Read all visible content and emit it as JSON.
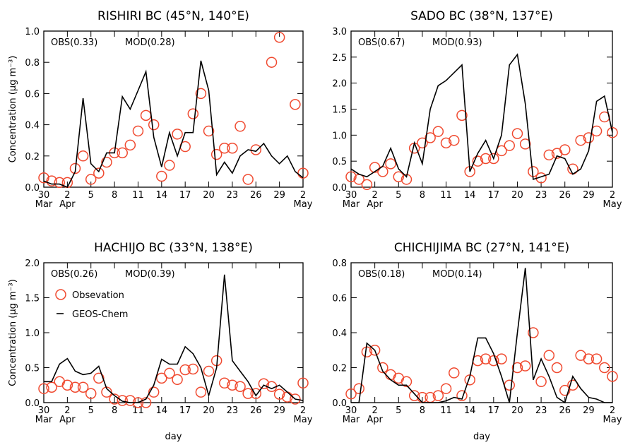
{
  "chart_data": [
    {
      "type": "line",
      "title": "RISHIRI BC (45°N, 140°E)",
      "ylabel": "Concentration (μg m⁻³)",
      "annotations": [
        {
          "text": "OBS(0.33)",
          "color": "#f04a30"
        },
        {
          "text": "MOD(0.28)",
          "color": "#000000"
        }
      ],
      "categories": [
        "30 Mar",
        null,
        null,
        "2 Apr",
        null,
        null,
        "5",
        null,
        null,
        "8",
        null,
        null,
        "11",
        null,
        null,
        "14",
        null,
        null,
        "17",
        null,
        null,
        "20",
        null,
        null,
        "23",
        null,
        null,
        "26",
        null,
        null,
        "29",
        null,
        null,
        "2 May"
      ],
      "ylim": [
        0,
        1
      ],
      "yticks": [
        {
          "value": 0,
          "label": "0.0"
        },
        0.2,
        0.4,
        0.6,
        0.8,
        {
          "value": 1,
          "label": "1.0"
        }
      ],
      "series": [
        {
          "style": "markers",
          "color": "#f04a30",
          "values": [
            0.06,
            0.04,
            0.03,
            0.03,
            0.12,
            0.2,
            0.05,
            0.09,
            0.16,
            0.22,
            0.22,
            0.27,
            0.36,
            0.46,
            0.4,
            0.07,
            0.14,
            0.34,
            0.26,
            0.47,
            0.6,
            0.36,
            0.21,
            0.25,
            0.25,
            0.39,
            0.05,
            0.24,
            null,
            0.8,
            0.96,
            null,
            0.53,
            0.09
          ]
        },
        {
          "style": "line",
          "color": "#000000",
          "values": [
            0.04,
            0.02,
            0.02,
            0.0,
            0.1,
            0.57,
            0.15,
            0.1,
            0.22,
            0.22,
            0.58,
            0.5,
            0.62,
            0.74,
            0.32,
            0.13,
            0.35,
            0.2,
            0.35,
            0.35,
            0.81,
            0.62,
            0.08,
            0.16,
            0.09,
            0.2,
            0.24,
            0.23,
            0.28,
            0.2,
            0.15,
            0.2,
            0.1,
            0.06
          ]
        }
      ]
    },
    {
      "type": "line",
      "title": "SADO BC (38°N, 137°E)",
      "annotations": [
        {
          "text": "OBS(0.67)",
          "color": "#f04a30"
        },
        {
          "text": "MOD(0.93)",
          "color": "#000000"
        }
      ],
      "categories": [
        "30 Mar",
        null,
        null,
        "2 Apr",
        null,
        null,
        "5",
        null,
        null,
        "8",
        null,
        null,
        "11",
        null,
        null,
        "14",
        null,
        null,
        "17",
        null,
        null,
        "20",
        null,
        null,
        "23",
        null,
        null,
        "26",
        null,
        null,
        "29",
        null,
        null,
        "2 May"
      ],
      "ylim": [
        0,
        3
      ],
      "yticks": [
        {
          "value": 0,
          "label": "0.0"
        },
        0.5,
        {
          "value": 1,
          "label": "1.0"
        },
        1.5,
        {
          "value": 2,
          "label": "2.0"
        },
        2.5,
        {
          "value": 3,
          "label": "3.0"
        }
      ],
      "series": [
        {
          "style": "markers",
          "color": "#f04a30",
          "values": [
            0.2,
            0.15,
            0.05,
            0.38,
            0.3,
            0.45,
            0.2,
            0.15,
            0.75,
            0.85,
            0.95,
            1.07,
            0.85,
            0.9,
            1.38,
            0.3,
            0.5,
            0.55,
            0.55,
            0.7,
            0.8,
            1.03,
            0.83,
            0.3,
            0.18,
            0.62,
            0.65,
            0.72,
            0.35,
            0.9,
            0.95,
            1.08,
            1.35,
            1.05
          ]
        },
        {
          "style": "line",
          "color": "#000000",
          "values": [
            0.35,
            0.25,
            0.2,
            0.3,
            0.4,
            0.75,
            0.35,
            0.2,
            0.85,
            0.45,
            1.5,
            1.95,
            2.05,
            2.2,
            2.35,
            0.3,
            0.65,
            0.9,
            0.55,
            1.0,
            2.35,
            2.55,
            1.6,
            0.15,
            0.2,
            0.25,
            0.6,
            0.55,
            0.25,
            0.35,
            0.7,
            1.65,
            1.75,
            1.05
          ]
        }
      ]
    },
    {
      "type": "line",
      "title": "HACHIJO BC (33°N, 138°E)",
      "ylabel": "Concentration (μg m⁻³)",
      "xlabel": "day",
      "legend": "upper left",
      "annotations": [
        {
          "text": "OBS(0.26)",
          "color": "#f04a30"
        },
        {
          "text": "MOD(0.39)",
          "color": "#000000"
        }
      ],
      "categories": [
        "30 Mar",
        null,
        null,
        "2 Apr",
        null,
        null,
        "5",
        null,
        null,
        "8",
        null,
        null,
        "11",
        null,
        null,
        "14",
        null,
        null,
        "17",
        null,
        null,
        "20",
        null,
        null,
        "23",
        null,
        null,
        "26",
        null,
        null,
        "29",
        null,
        null,
        "2 May"
      ],
      "ylim": [
        0,
        2
      ],
      "yticks": [
        {
          "value": 0,
          "label": "0.0"
        },
        0.5,
        {
          "value": 1,
          "label": "1.0"
        },
        1.5,
        {
          "value": 2,
          "label": "2.0"
        }
      ],
      "series": [
        {
          "name": "Obsevation",
          "style": "markers",
          "color": "#f04a30",
          "values": [
            0.2,
            0.22,
            0.3,
            0.25,
            0.22,
            0.22,
            0.13,
            0.35,
            0.15,
            0.05,
            0.03,
            0.03,
            0.0,
            0.0,
            0.15,
            0.35,
            0.42,
            0.33,
            0.47,
            0.48,
            0.15,
            0.45,
            0.6,
            0.28,
            0.25,
            0.23,
            0.13,
            0.13,
            0.27,
            0.23,
            0.12,
            0.08,
            0.05,
            0.28
          ]
        },
        {
          "name": "GEOS-Chem",
          "style": "line",
          "color": "#000000",
          "values": [
            0.3,
            0.3,
            0.55,
            0.63,
            0.45,
            0.4,
            0.42,
            0.52,
            0.2,
            0.1,
            0.02,
            0.0,
            0.0,
            0.05,
            0.25,
            0.62,
            0.55,
            0.55,
            0.8,
            0.7,
            0.5,
            0.1,
            0.5,
            1.83,
            0.6,
            0.45,
            0.3,
            0.1,
            0.25,
            0.2,
            0.25,
            0.15,
            0.05,
            0.03
          ]
        }
      ]
    },
    {
      "type": "line",
      "title": "CHICHIJIMA BC (27°N, 141°E)",
      "xlabel": "day",
      "annotations": [
        {
          "text": "OBS(0.18)",
          "color": "#f04a30"
        },
        {
          "text": "MOD(0.14)",
          "color": "#000000"
        }
      ],
      "categories": [
        "30 Mar",
        null,
        null,
        "2 Apr",
        null,
        null,
        "5",
        null,
        null,
        "8",
        null,
        null,
        "11",
        null,
        null,
        "14",
        null,
        null,
        "17",
        null,
        null,
        "20",
        null,
        null,
        "23",
        null,
        null,
        "26",
        null,
        null,
        "29",
        null,
        null,
        "2 May"
      ],
      "ylim": [
        0,
        0.8
      ],
      "yticks": [
        {
          "value": 0,
          "label": "0.0"
        },
        0.2,
        0.4,
        0.6,
        0.8
      ],
      "series": [
        {
          "style": "markers",
          "color": "#f04a30",
          "values": [
            0.05,
            0.08,
            0.29,
            0.3,
            0.2,
            0.16,
            0.14,
            0.12,
            0.04,
            0.03,
            0.03,
            0.04,
            0.08,
            0.17,
            0.04,
            0.13,
            0.24,
            0.25,
            0.24,
            0.25,
            0.1,
            0.2,
            0.21,
            0.4,
            0.12,
            0.27,
            0.2,
            0.07,
            0.1,
            0.27,
            0.25,
            0.25,
            0.2,
            0.15
          ]
        },
        {
          "style": "line",
          "color": "#000000",
          "values": [
            0,
            0,
            0.34,
            0.3,
            0.18,
            0.13,
            0.1,
            0.1,
            0.05,
            0,
            0,
            0,
            0.01,
            0.03,
            0.02,
            0.15,
            0.37,
            0.37,
            0.28,
            0.15,
            0,
            0.4,
            0.77,
            0.13,
            0.25,
            0.15,
            0.03,
            0,
            0.15,
            0.08,
            0.03,
            0.02,
            0,
            0
          ]
        }
      ]
    }
  ]
}
